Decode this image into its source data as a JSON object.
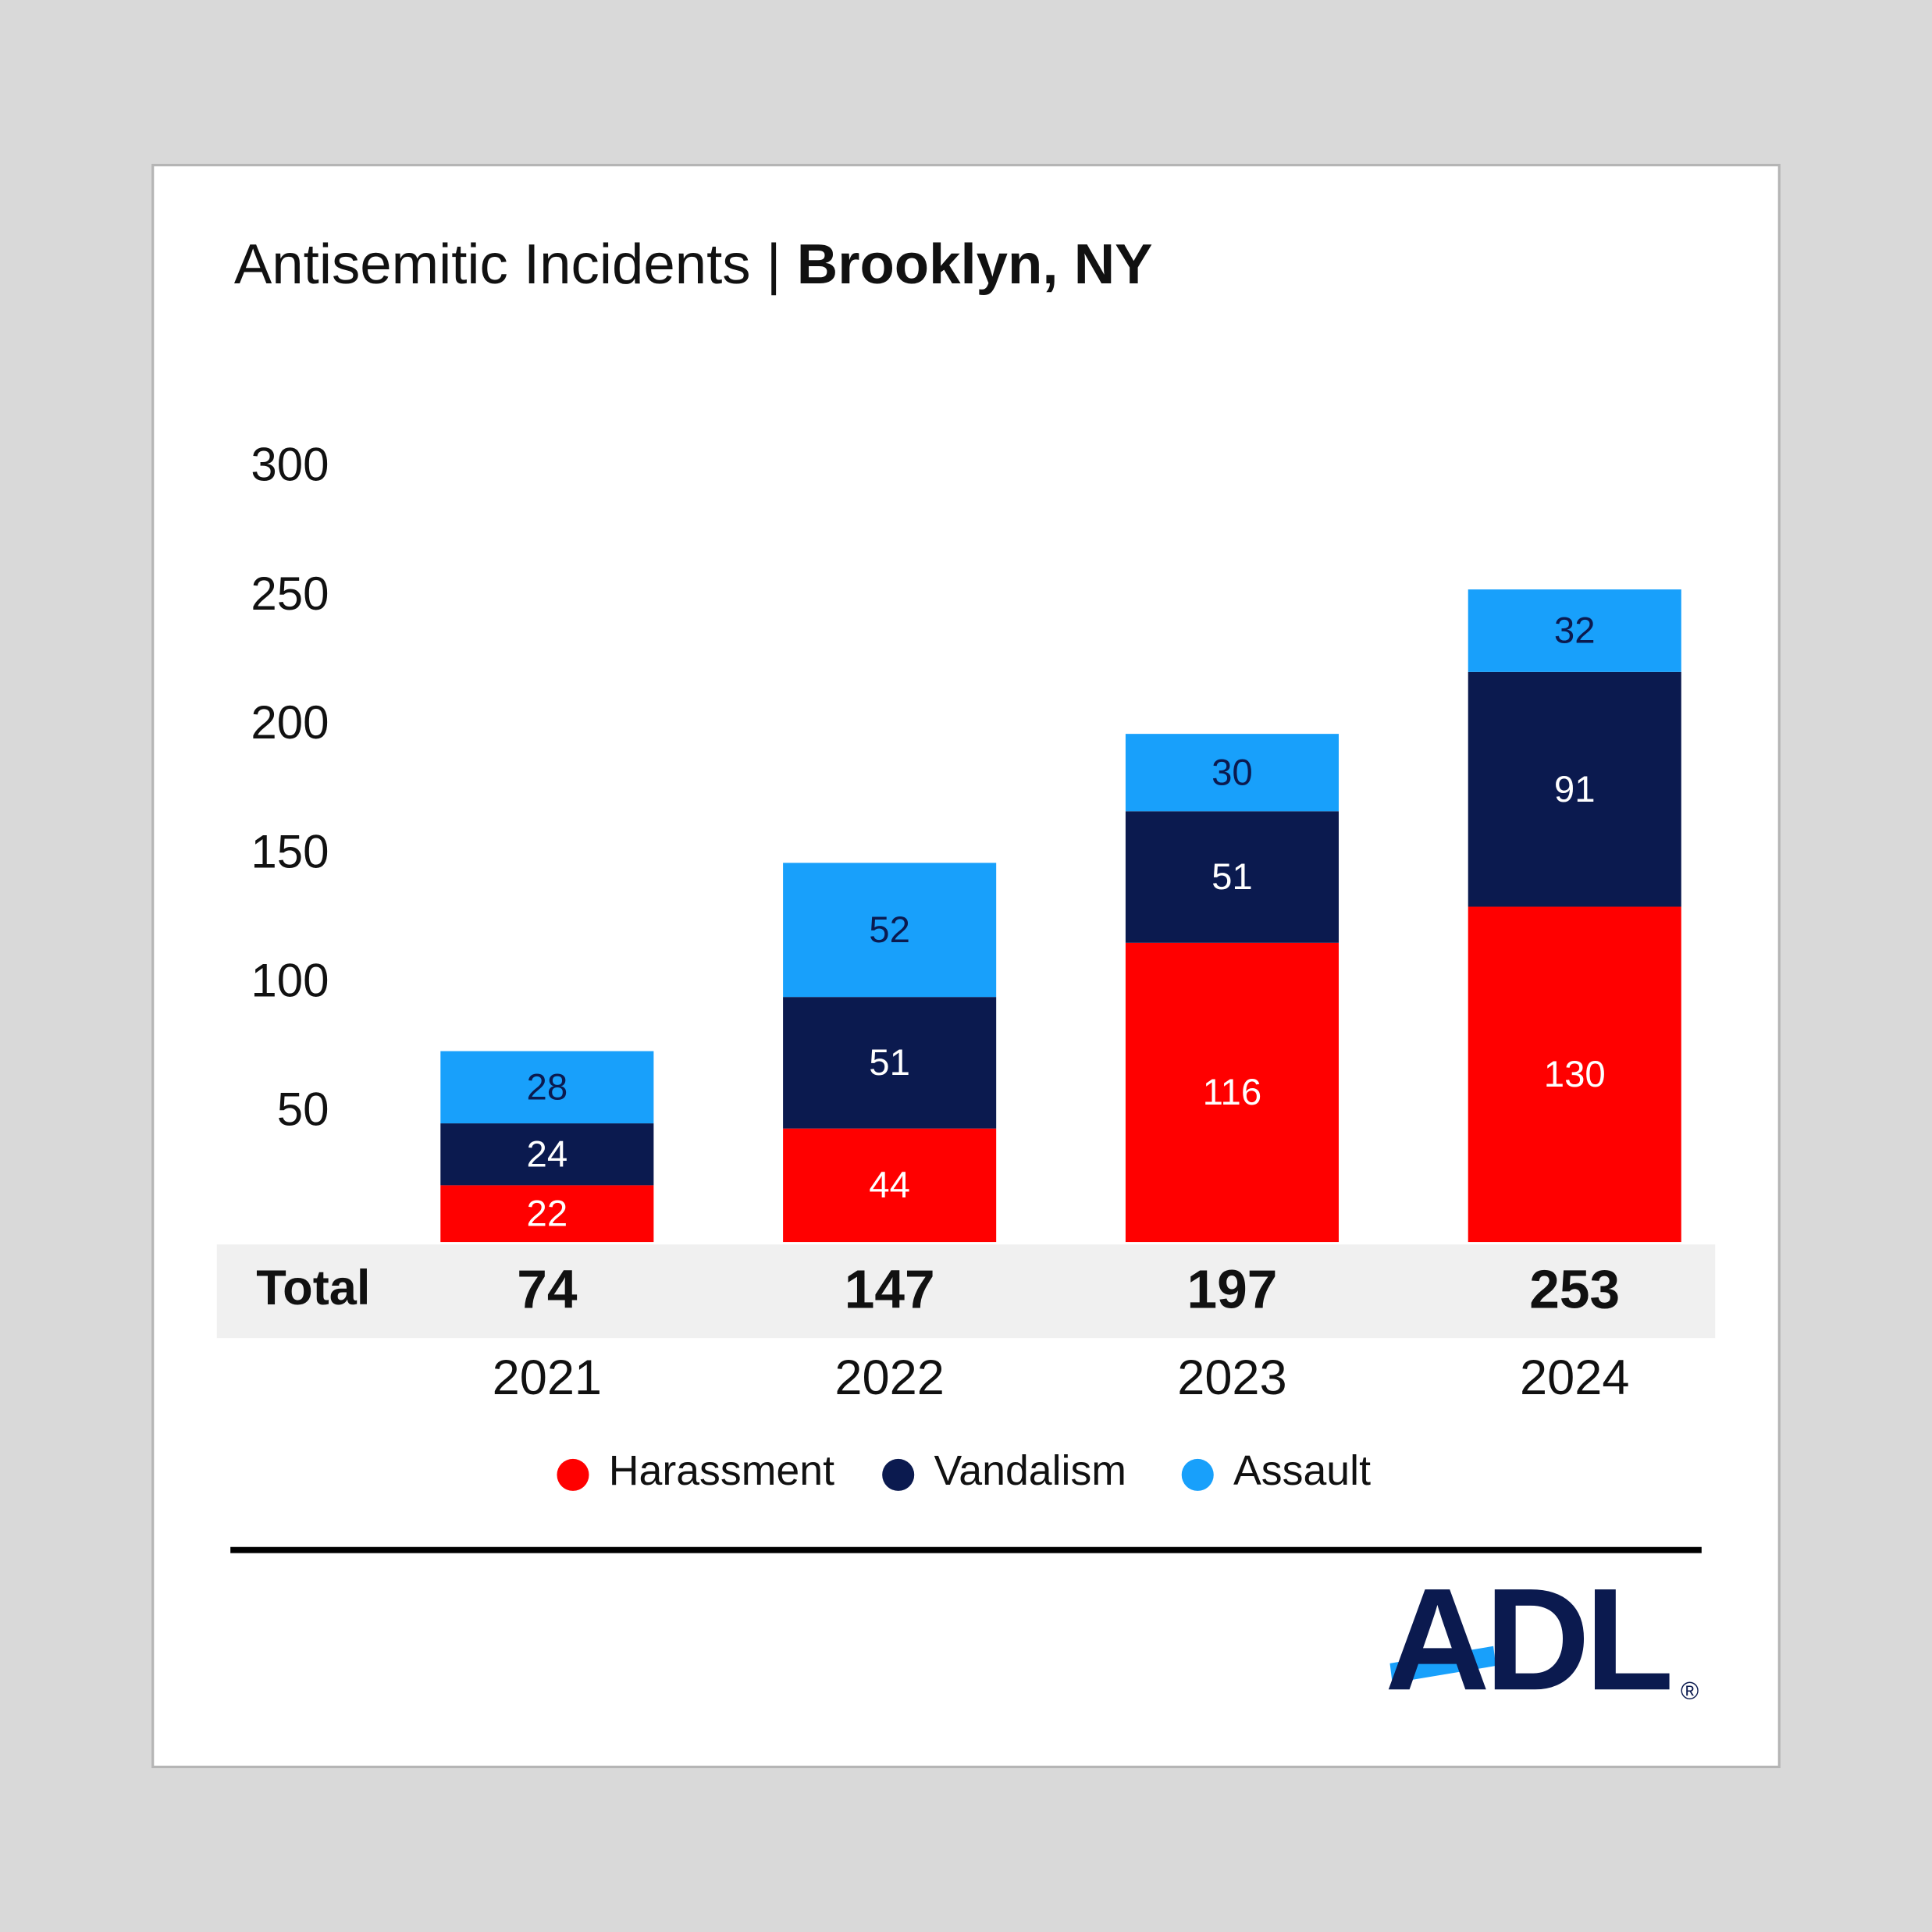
{
  "chart_data": {
    "type": "stacked_bar",
    "title": "Antisemitic Incidents |",
    "title_location": "Brooklyn, NY",
    "categories": [
      "2021",
      "2022",
      "2023",
      "2024"
    ],
    "series": [
      {
        "name": "Harassment",
        "color": "#ff0000",
        "values": [
          22,
          44,
          116,
          130
        ]
      },
      {
        "name": "Vandalism",
        "color": "#0b1a4f",
        "values": [
          24,
          51,
          51,
          91
        ]
      },
      {
        "name": "Assault",
        "color": "#18a0fb",
        "values": [
          28,
          52,
          30,
          32
        ]
      }
    ],
    "totals_label": "Total",
    "totals": [
      74,
      147,
      197,
      253
    ],
    "ylim": [
      0,
      300
    ],
    "yticks": [
      50,
      100,
      150,
      200,
      250,
      300
    ],
    "grid": false,
    "legend": "bottom",
    "logo": "ADL",
    "logo_mark": "®"
  }
}
